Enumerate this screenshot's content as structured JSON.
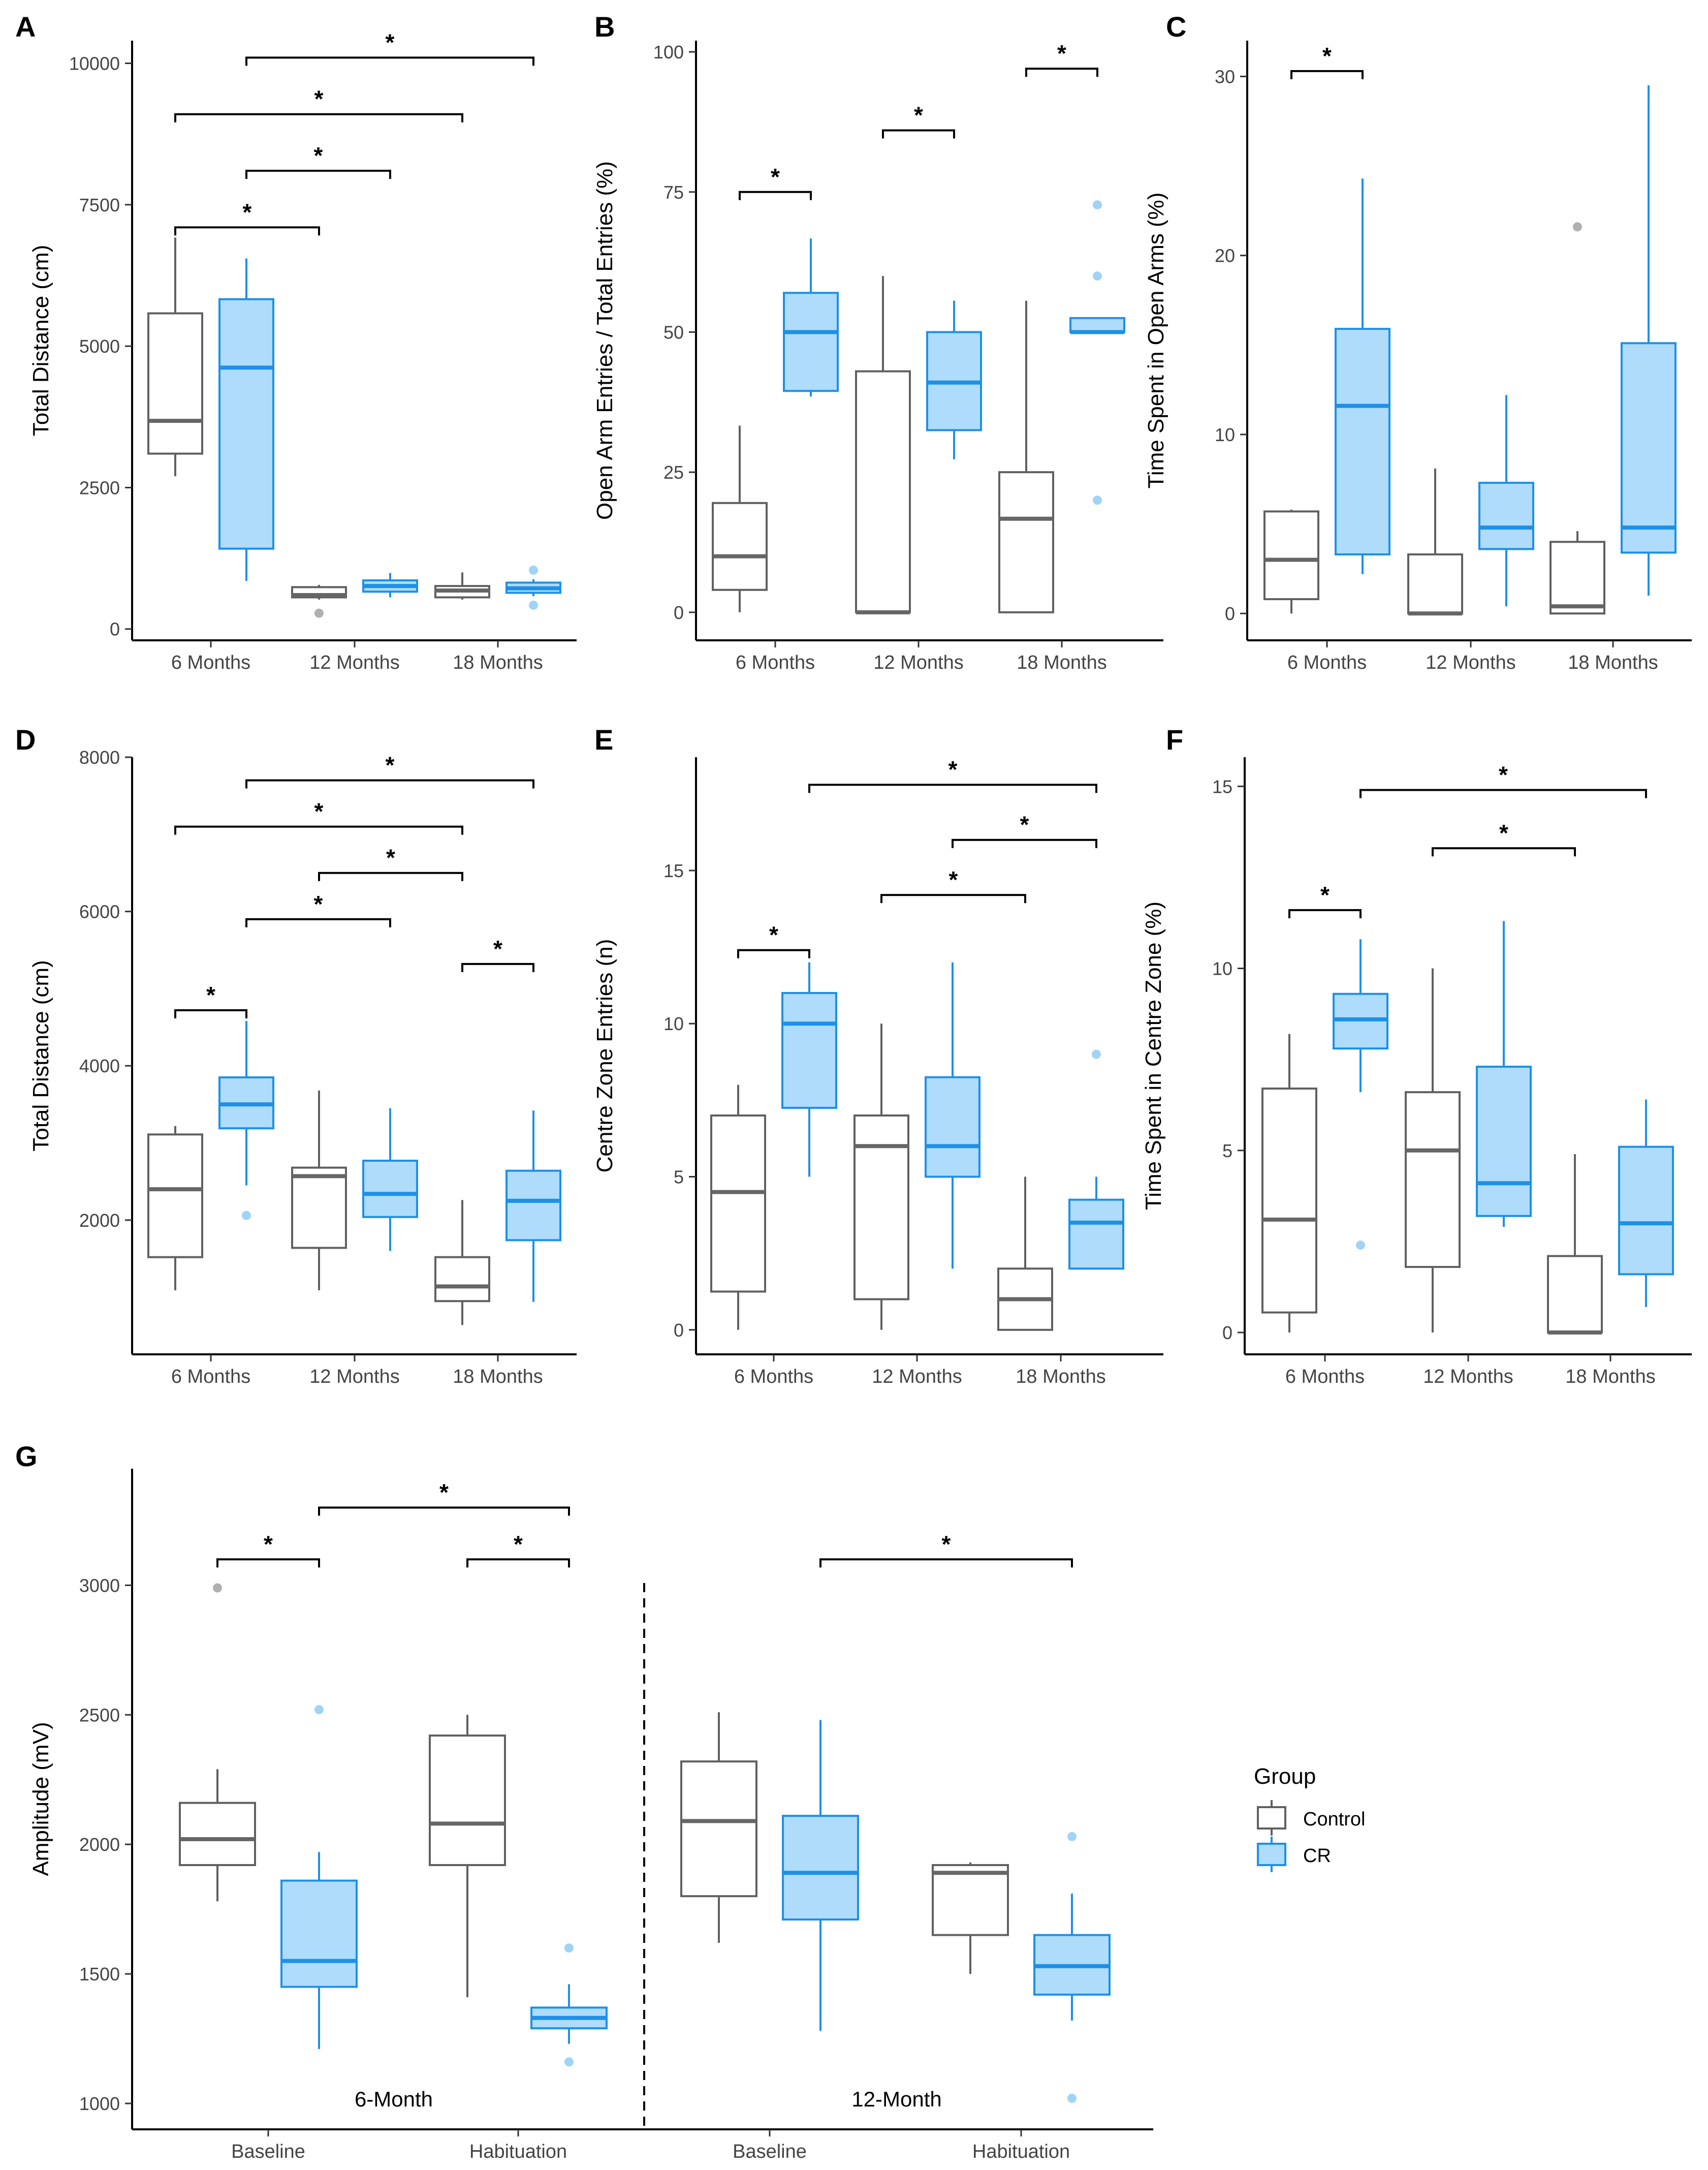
{
  "colors": {
    "control_stroke": "#606060",
    "control_median": "#666666",
    "control_outlier": "#b0b0b0",
    "cr_stroke": "#1e90e6",
    "cr_fill": "#aedcfa",
    "cr_outlier": "#9fd4f7",
    "axis": "#000000",
    "tick_label": "#444444"
  },
  "legend": {
    "title": "Group",
    "items": [
      {
        "label": "Control",
        "group": "control"
      },
      {
        "label": "CR",
        "group": "cr"
      }
    ]
  },
  "chart_data": [
    {
      "id": "A",
      "type": "box",
      "panel_label": "A",
      "ylabel": "Total Distance (cm)",
      "categories": [
        "6 Months",
        "12 Months",
        "18 Months"
      ],
      "ylim": [
        -200,
        10400
      ],
      "yticks": [
        0,
        2500,
        5000,
        7500,
        10000
      ],
      "ytick_labels": [
        "0",
        "2500",
        "5000",
        "7500",
        "10000"
      ],
      "boxes": [
        {
          "cat": 0,
          "group": "control",
          "lo": 2700,
          "q1": 3100,
          "med": 3680,
          "q3": 5580,
          "hi": 6920,
          "out": []
        },
        {
          "cat": 0,
          "group": "cr",
          "lo": 850,
          "q1": 1420,
          "med": 4620,
          "q3": 5830,
          "hi": 6550,
          "out": []
        },
        {
          "cat": 1,
          "group": "control",
          "lo": 520,
          "q1": 560,
          "med": 600,
          "q3": 740,
          "hi": 780,
          "out": [
            280
          ]
        },
        {
          "cat": 1,
          "group": "cr",
          "lo": 560,
          "q1": 660,
          "med": 760,
          "q3": 860,
          "hi": 990,
          "out": []
        },
        {
          "cat": 2,
          "group": "control",
          "lo": 520,
          "q1": 560,
          "med": 680,
          "q3": 760,
          "hi": 1000,
          "out": []
        },
        {
          "cat": 2,
          "group": "cr",
          "lo": 580,
          "q1": 640,
          "med": 720,
          "q3": 820,
          "hi": 880,
          "out": [
            1040,
            420
          ]
        }
      ],
      "signif": [
        {
          "x1": 0.2,
          "x2": 2.2,
          "y": 10100,
          "label": "*"
        },
        {
          "x1": -0.2,
          "x2": 1.8,
          "y": 9100,
          "label": "*"
        },
        {
          "x1": 0.2,
          "x2": 1.2,
          "y": 8100,
          "label": "*"
        },
        {
          "x1": -0.2,
          "x2": 0.8,
          "y": 7100,
          "label": "*"
        }
      ]
    },
    {
      "id": "B",
      "type": "box",
      "panel_label": "B",
      "ylabel": "Open Arm Entries / Total Entries (%)",
      "categories": [
        "6 Months",
        "12 Months",
        "18 Months"
      ],
      "ylim": [
        -5,
        102
      ],
      "yticks": [
        0,
        25,
        50,
        75,
        100
      ],
      "ytick_labels": [
        "0",
        "25",
        "50",
        "75",
        "100"
      ],
      "boxes": [
        {
          "cat": 0,
          "group": "control",
          "lo": 0,
          "q1": 4,
          "med": 10,
          "q3": 19.5,
          "hi": 33.3,
          "out": []
        },
        {
          "cat": 0,
          "group": "cr",
          "lo": 38.5,
          "q1": 39.5,
          "med": 50,
          "q3": 57,
          "hi": 66.7,
          "out": []
        },
        {
          "cat": 1,
          "group": "control",
          "lo": 0,
          "q1": 0,
          "med": 0,
          "q3": 43,
          "hi": 60,
          "out": []
        },
        {
          "cat": 1,
          "group": "cr",
          "lo": 27.3,
          "q1": 32.5,
          "med": 41,
          "q3": 50,
          "hi": 55.6,
          "out": []
        },
        {
          "cat": 2,
          "group": "control",
          "lo": 0,
          "q1": 0,
          "med": 16.7,
          "q3": 25,
          "hi": 55.6,
          "out": []
        },
        {
          "cat": 2,
          "group": "cr",
          "lo": 50,
          "q1": 50,
          "med": 50,
          "q3": 52.5,
          "hi": 52.5,
          "out": [
            72.7,
            60,
            20
          ]
        }
      ],
      "signif": [
        {
          "x1": 1.8,
          "x2": 2.2,
          "y": 97,
          "label": "*"
        },
        {
          "x1": 0.8,
          "x2": 1.2,
          "y": 86,
          "label": "*"
        },
        {
          "x1": -0.2,
          "x2": 0.2,
          "y": 75,
          "label": "*"
        }
      ]
    },
    {
      "id": "C",
      "type": "box",
      "panel_label": "C",
      "ylabel": "Time Spent in Open Arms (%)",
      "categories": [
        "6 Months",
        "12 Months",
        "18 Months"
      ],
      "ylim": [
        -1.5,
        32
      ],
      "yticks": [
        0,
        10,
        20,
        30
      ],
      "ytick_labels": [
        "0",
        "10",
        "20",
        "30"
      ],
      "boxes": [
        {
          "cat": 0,
          "group": "control",
          "lo": 0,
          "q1": 0.8,
          "med": 3,
          "q3": 5.7,
          "hi": 5.8,
          "out": []
        },
        {
          "cat": 0,
          "group": "cr",
          "lo": 2.2,
          "q1": 3.3,
          "med": 11.6,
          "q3": 15.9,
          "hi": 24.3,
          "out": []
        },
        {
          "cat": 1,
          "group": "control",
          "lo": 0,
          "q1": 0,
          "med": 0,
          "q3": 3.3,
          "hi": 8.1,
          "out": []
        },
        {
          "cat": 1,
          "group": "cr",
          "lo": 0.4,
          "q1": 3.6,
          "med": 4.8,
          "q3": 7.3,
          "hi": 12.2,
          "out": []
        },
        {
          "cat": 2,
          "group": "control",
          "lo": 0,
          "q1": 0,
          "med": 0.4,
          "q3": 4,
          "hi": 4.6,
          "out": [
            21.6
          ]
        },
        {
          "cat": 2,
          "group": "cr",
          "lo": 1,
          "q1": 3.4,
          "med": 4.8,
          "q3": 15.1,
          "hi": 29.5,
          "out": []
        }
      ],
      "signif": [
        {
          "x1": -0.2,
          "x2": 0.2,
          "y": 30.3,
          "label": "*"
        }
      ]
    },
    {
      "id": "D",
      "type": "box",
      "panel_label": "D",
      "ylabel": "Total Distance (cm)",
      "categories": [
        "6 Months",
        "12 Months",
        "18 Months"
      ],
      "ylim": [
        260,
        8000
      ],
      "yticks": [
        2000,
        4000,
        6000,
        8000
      ],
      "ytick_labels": [
        "2000",
        "4000",
        "6000",
        "8000"
      ],
      "boxes": [
        {
          "cat": 0,
          "group": "control",
          "lo": 1090,
          "q1": 1520,
          "med": 2400,
          "q3": 3110,
          "hi": 3220,
          "out": []
        },
        {
          "cat": 0,
          "group": "cr",
          "lo": 2450,
          "q1": 3190,
          "med": 3500,
          "q3": 3850,
          "hi": 4580,
          "out": [
            2060
          ]
        },
        {
          "cat": 1,
          "group": "control",
          "lo": 1090,
          "q1": 1640,
          "med": 2570,
          "q3": 2680,
          "hi": 3680,
          "out": []
        },
        {
          "cat": 1,
          "group": "cr",
          "lo": 1600,
          "q1": 2040,
          "med": 2340,
          "q3": 2770,
          "hi": 3450,
          "out": []
        },
        {
          "cat": 2,
          "group": "control",
          "lo": 640,
          "q1": 950,
          "med": 1140,
          "q3": 1520,
          "hi": 2260,
          "out": []
        },
        {
          "cat": 2,
          "group": "cr",
          "lo": 940,
          "q1": 1740,
          "med": 2250,
          "q3": 2640,
          "hi": 3420,
          "out": []
        }
      ],
      "signif": [
        {
          "x1": 0.2,
          "x2": 2.2,
          "y": 7700,
          "label": "*"
        },
        {
          "x1": -0.2,
          "x2": 1.8,
          "y": 7100,
          "label": "*"
        },
        {
          "x1": 0.8,
          "x2": 1.8,
          "y": 6500,
          "label": "*"
        },
        {
          "x1": 0.2,
          "x2": 1.2,
          "y": 5900,
          "label": "*"
        },
        {
          "x1": 1.8,
          "x2": 2.2,
          "y": 5320,
          "label": "*"
        },
        {
          "x1": -0.2,
          "x2": 0.2,
          "y": 4720,
          "label": "*"
        }
      ]
    },
    {
      "id": "E",
      "type": "box",
      "panel_label": "E",
      "ylabel": "Centre Zone Entries (n)",
      "categories": [
        "6 Months",
        "12 Months",
        "18 Months"
      ],
      "ylim": [
        -0.8,
        18.7
      ],
      "yticks": [
        0,
        5,
        10,
        15
      ],
      "ytick_labels": [
        "0",
        "5",
        "10",
        "15"
      ],
      "boxes": [
        {
          "cat": 0,
          "group": "control",
          "lo": 0,
          "q1": 1.25,
          "med": 4.5,
          "q3": 7,
          "hi": 8,
          "out": []
        },
        {
          "cat": 0,
          "group": "cr",
          "lo": 5,
          "q1": 7.25,
          "med": 10,
          "q3": 11,
          "hi": 12,
          "out": []
        },
        {
          "cat": 1,
          "group": "control",
          "lo": 0,
          "q1": 1,
          "med": 6,
          "q3": 7,
          "hi": 10,
          "out": []
        },
        {
          "cat": 1,
          "group": "cr",
          "lo": 2,
          "q1": 5,
          "med": 6,
          "q3": 8.25,
          "hi": 12,
          "out": []
        },
        {
          "cat": 2,
          "group": "control",
          "lo": 0,
          "q1": 0,
          "med": 1,
          "q3": 2,
          "hi": 5,
          "out": []
        },
        {
          "cat": 2,
          "group": "cr",
          "lo": 2,
          "q1": 2,
          "med": 3.5,
          "q3": 4.25,
          "hi": 5,
          "out": [
            9
          ]
        }
      ],
      "signif": [
        {
          "x1": 0.2,
          "x2": 2.2,
          "y": 17.8,
          "label": "*"
        },
        {
          "x1": 1.2,
          "x2": 2.2,
          "y": 16,
          "label": "*"
        },
        {
          "x1": 0.8,
          "x2": 1.8,
          "y": 14.2,
          "label": "*"
        },
        {
          "x1": -0.2,
          "x2": 0.2,
          "y": 12.4,
          "label": "*"
        }
      ]
    },
    {
      "id": "F",
      "type": "box",
      "panel_label": "F",
      "ylabel": "Time Spent in Centre Zone (%)",
      "categories": [
        "6 Months",
        "12 Months",
        "18 Months"
      ],
      "ylim": [
        -0.6,
        15.8
      ],
      "yticks": [
        0,
        5,
        10,
        15
      ],
      "ytick_labels": [
        "0",
        "5",
        "10",
        "15"
      ],
      "boxes": [
        {
          "cat": 0,
          "group": "control",
          "lo": 0,
          "q1": 0.55,
          "med": 3.1,
          "q3": 6.7,
          "hi": 8.2,
          "out": []
        },
        {
          "cat": 0,
          "group": "cr",
          "lo": 6.6,
          "q1": 7.8,
          "med": 8.6,
          "q3": 9.3,
          "hi": 10.8,
          "out": [
            2.4
          ]
        },
        {
          "cat": 1,
          "group": "control",
          "lo": 0,
          "q1": 1.8,
          "med": 5,
          "q3": 6.6,
          "hi": 10,
          "out": []
        },
        {
          "cat": 1,
          "group": "cr",
          "lo": 2.9,
          "q1": 3.2,
          "med": 4.1,
          "q3": 7.3,
          "hi": 11.3,
          "out": []
        },
        {
          "cat": 2,
          "group": "control",
          "lo": 0,
          "q1": 0,
          "med": 0,
          "q3": 2.1,
          "hi": 4.9,
          "out": []
        },
        {
          "cat": 2,
          "group": "cr",
          "lo": 0.7,
          "q1": 1.6,
          "med": 3,
          "q3": 5.1,
          "hi": 6.4,
          "out": []
        }
      ],
      "signif": [
        {
          "x1": 0.2,
          "x2": 2.2,
          "y": 14.9,
          "label": "*"
        },
        {
          "x1": 0.8,
          "x2": 1.8,
          "y": 13.3,
          "label": "*"
        },
        {
          "x1": -0.2,
          "x2": 0.2,
          "y": 11.6,
          "label": "*"
        }
      ]
    },
    {
      "id": "G",
      "type": "box",
      "panel_label": "G",
      "ylabel": "Amplitude (mV)",
      "categories": [
        "Baseline",
        "Habituation",
        "Baseline",
        "Habituation"
      ],
      "ylim": [
        900,
        3450
      ],
      "yticks": [
        1000,
        1500,
        2000,
        2500,
        3000
      ],
      "ytick_labels": [
        "1000",
        "1500",
        "2000",
        "2500",
        "3000"
      ],
      "section_labels": [
        "6-Month",
        "12-Month"
      ],
      "boxes": [
        {
          "cat": 0,
          "group": "control",
          "lo": 1780,
          "q1": 1920,
          "med": 2020,
          "q3": 2160,
          "hi": 2290,
          "out": [
            2990
          ]
        },
        {
          "cat": 0,
          "group": "cr",
          "lo": 1210,
          "q1": 1450,
          "med": 1550,
          "q3": 1860,
          "hi": 1970,
          "out": [
            2520
          ]
        },
        {
          "cat": 1,
          "group": "control",
          "lo": 1410,
          "q1": 1920,
          "med": 2080,
          "q3": 2420,
          "hi": 2500,
          "out": []
        },
        {
          "cat": 1,
          "group": "cr",
          "lo": 1230,
          "q1": 1290,
          "med": 1330,
          "q3": 1370,
          "hi": 1460,
          "out": [
            1600,
            1160
          ]
        },
        {
          "cat": 2,
          "group": "control",
          "lo": 1620,
          "q1": 1800,
          "med": 2090,
          "q3": 2320,
          "hi": 2510,
          "out": []
        },
        {
          "cat": 2,
          "group": "cr",
          "lo": 1280,
          "q1": 1710,
          "med": 1890,
          "q3": 2110,
          "hi": 2480,
          "out": []
        },
        {
          "cat": 3,
          "group": "control",
          "lo": 1500,
          "q1": 1650,
          "med": 1890,
          "q3": 1920,
          "hi": 1930,
          "out": []
        },
        {
          "cat": 3,
          "group": "cr",
          "lo": 1320,
          "q1": 1420,
          "med": 1530,
          "q3": 1650,
          "hi": 1810,
          "out": [
            2030,
            1020
          ]
        }
      ],
      "signif": [
        {
          "x1": 0.2,
          "x2": 1.2,
          "y": 3300,
          "label": "*"
        },
        {
          "x1": -0.2,
          "x2": 0.2,
          "y": 3100,
          "label": "*"
        },
        {
          "x1": 0.8,
          "x2": 1.2,
          "y": 3100,
          "label": "*"
        },
        {
          "x1": 2.2,
          "x2": 3.2,
          "y": 3100,
          "label": "*"
        }
      ]
    }
  ]
}
